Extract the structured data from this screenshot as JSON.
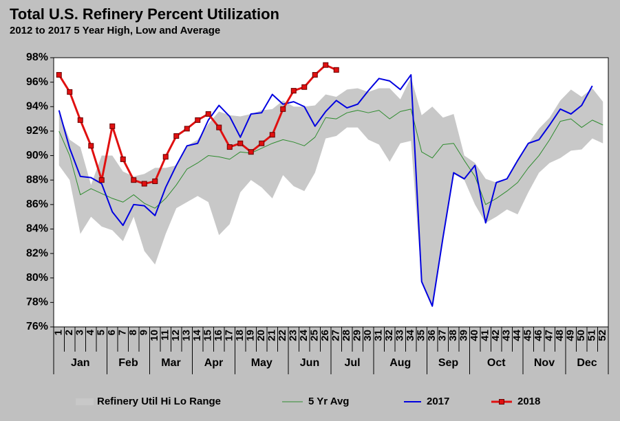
{
  "chart_data": {
    "type": "line",
    "title": "Total U.S. Refinery Percent Utilization",
    "subtitle": "2012 to 2017 5 Year High, Low and Average",
    "categories": [
      1,
      2,
      3,
      4,
      5,
      6,
      7,
      8,
      9,
      10,
      11,
      12,
      13,
      14,
      15,
      16,
      17,
      18,
      19,
      20,
      21,
      22,
      23,
      24,
      25,
      26,
      27,
      28,
      29,
      30,
      31,
      32,
      33,
      34,
      35,
      36,
      37,
      38,
      39,
      40,
      41,
      42,
      43,
      44,
      45,
      46,
      47,
      48,
      49,
      50,
      51,
      52
    ],
    "months": [
      {
        "label": "Jan",
        "weeks": 5
      },
      {
        "label": "Feb",
        "weeks": 4
      },
      {
        "label": "Mar",
        "weeks": 4
      },
      {
        "label": "Apr",
        "weeks": 4
      },
      {
        "label": "May",
        "weeks": 5
      },
      {
        "label": "Jun",
        "weeks": 4
      },
      {
        "label": "Jul",
        "weeks": 4
      },
      {
        "label": "Aug",
        "weeks": 5
      },
      {
        "label": "Sep",
        "weeks": 4
      },
      {
        "label": "Oct",
        "weeks": 5
      },
      {
        "label": "Nov",
        "weeks": 4
      },
      {
        "label": "Dec",
        "weeks": 4
      }
    ],
    "range": {
      "name": "Refinery Util Hi Lo Range",
      "color": "#c8c8c8",
      "high": [
        93.5,
        91.3,
        90.7,
        87.6,
        90.0,
        90.0,
        88.7,
        88.3,
        88.5,
        89.0,
        89.0,
        89.2,
        90.8,
        91.3,
        92.6,
        93.6,
        93.3,
        93.2,
        93.4,
        93.7,
        93.8,
        94.5,
        94.0,
        94.0,
        94.1,
        95.0,
        94.8,
        95.4,
        95.5,
        95.2,
        95.5,
        95.5,
        94.6,
        96.4,
        93.3,
        94.0,
        93.1,
        93.4,
        90.0,
        89.4,
        88.1,
        87.8,
        88.0,
        89.6,
        91.0,
        92.2,
        93.1,
        94.5,
        95.4,
        94.8,
        95.5,
        94.4
      ],
      "low": [
        89.2,
        88.0,
        83.6,
        85.0,
        84.2,
        83.9,
        83.0,
        85.0,
        82.2,
        81.1,
        83.6,
        85.7,
        86.2,
        86.7,
        86.2,
        83.5,
        84.4,
        87.0,
        88.0,
        87.4,
        86.5,
        88.4,
        87.5,
        87.1,
        88.6,
        91.4,
        91.6,
        92.3,
        92.3,
        91.3,
        90.9,
        89.5,
        91.0,
        91.2,
        79.7,
        77.7,
        83.3,
        88.5,
        88.0,
        86.0,
        84.5,
        85.0,
        85.6,
        85.2,
        87.0,
        88.6,
        89.4,
        89.8,
        90.4,
        90.5,
        91.4,
        91.0
      ]
    },
    "series": [
      {
        "name": "5 Yr Avg",
        "color": "#2e8b2e",
        "width": 1,
        "values": [
          92.0,
          90.0,
          86.8,
          87.3,
          86.9,
          86.5,
          86.2,
          86.8,
          86.1,
          85.7,
          86.5,
          87.6,
          88.9,
          89.4,
          90.0,
          89.9,
          89.7,
          90.3,
          90.2,
          90.6,
          91.0,
          91.3,
          91.1,
          90.8,
          91.5,
          93.1,
          93.0,
          93.5,
          93.7,
          93.5,
          93.7,
          93.0,
          93.6,
          93.8,
          90.3,
          89.8,
          90.9,
          91.0,
          89.6,
          88.3,
          86.0,
          86.5,
          87.1,
          87.8,
          89.0,
          90.0,
          91.3,
          92.8,
          93.0,
          92.3,
          92.9,
          92.5
        ]
      },
      {
        "name": "2017",
        "color": "#0000e0",
        "width": 2,
        "values": [
          93.7,
          90.6,
          88.3,
          88.2,
          87.7,
          85.4,
          84.3,
          86.0,
          85.9,
          85.1,
          87.4,
          89.2,
          90.8,
          91.0,
          92.9,
          94.1,
          93.2,
          91.5,
          93.4,
          93.5,
          95.0,
          94.2,
          94.4,
          94.0,
          92.4,
          93.6,
          94.5,
          93.9,
          94.2,
          95.3,
          96.3,
          96.1,
          95.4,
          96.6,
          79.7,
          77.7,
          83.3,
          88.6,
          88.1,
          89.2,
          84.5,
          87.8,
          88.1,
          89.6,
          91.0,
          91.3,
          92.5,
          93.8,
          93.4,
          94.1,
          95.7,
          null
        ]
      },
      {
        "name": "2018",
        "color": "#e01010",
        "width": 3,
        "marker": "square",
        "values": [
          96.6,
          95.2,
          92.9,
          90.8,
          88.0,
          92.4,
          89.7,
          88.0,
          87.7,
          87.9,
          89.9,
          91.6,
          92.2,
          92.9,
          93.4,
          92.3,
          90.7,
          91.0,
          90.3,
          91.0,
          91.7,
          93.8,
          95.3,
          95.6,
          96.6,
          97.4,
          97.0,
          null,
          null,
          null,
          null,
          null,
          null,
          null,
          null,
          null,
          null,
          null,
          null,
          null,
          null,
          null,
          null,
          null,
          null,
          null,
          null,
          null,
          null,
          null,
          null,
          null
        ]
      }
    ],
    "ylim": [
      76,
      98
    ],
    "yticks": [
      {
        "value": 76,
        "label": "76%"
      },
      {
        "value": 78,
        "label": "78%"
      },
      {
        "value": 80,
        "label": "80%"
      },
      {
        "value": 82,
        "label": "82%"
      },
      {
        "value": 84,
        "label": "84%"
      },
      {
        "value": 86,
        "label": "86%"
      },
      {
        "value": 88,
        "label": "88%"
      },
      {
        "value": 90,
        "label": "90%"
      },
      {
        "value": 92,
        "label": "92%"
      },
      {
        "value": 94,
        "label": "94%"
      },
      {
        "value": 96,
        "label": "96%"
      },
      {
        "value": 98,
        "label": "98%"
      }
    ],
    "grid": false,
    "legend": "bottom"
  }
}
